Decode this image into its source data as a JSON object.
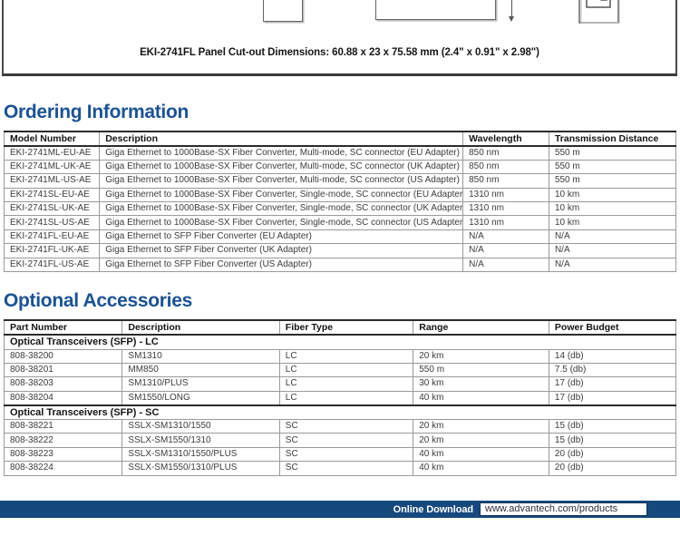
{
  "colors": {
    "heading_blue": "#1A5296",
    "footer_bar_blue": "#16497E",
    "table_border_gray": "#9a9a9a"
  },
  "diagram": {
    "caption": "EKI-2741FL Panel Cut-out Dimensions: 60.88 x 23 x 75.58 mm (2.4\" x 0.91\" x 2.98\")"
  },
  "ordering": {
    "title": "Ordering Information",
    "columns": [
      "Model Number",
      "Description",
      "Wavelength",
      "Transmission Distance"
    ],
    "col_widths": [
      "14.2%",
      "54.1%",
      "12.8%",
      "18.9%"
    ],
    "rows": [
      [
        "EKI-2741ML-EU-AE",
        "Giga Ethernet to 1000Base-SX Fiber Converter, Multi-mode, SC connector (EU Adapter)",
        "850 nm",
        "550 m"
      ],
      [
        "EKI-2741ML-UK-AE",
        "Giga Ethernet to 1000Base-SX Fiber Converter, Multi-mode, SC connector (UK Adapter)",
        "850 nm",
        "550 m"
      ],
      [
        "EKI-2741ML-US-AE",
        "Giga Ethernet to 1000Base-SX Fiber Converter, Multi-mode, SC connector (US Adapter)",
        "850 nm",
        "550 m"
      ],
      [
        "EKI-2741SL-EU-AE",
        "Giga Ethernet to 1000Base-SX Fiber Converter, Single-mode, SC connector (EU Adapter)",
        "1310 nm",
        "10 km"
      ],
      [
        "EKI-2741SL-UK-AE",
        "Giga Ethernet to 1000Base-SX Fiber Converter, Single-mode, SC connector (UK Adapter)",
        "1310 nm",
        "10 km"
      ],
      [
        "EKI-2741SL-US-AE",
        "Giga Ethernet to 1000Base-SX Fiber Converter, Single-mode, SC connector (US Adapter)",
        "1310 nm",
        "10 km"
      ],
      [
        "EKI-2741FL-EU-AE",
        "Giga Ethernet to SFP Fiber Converter (EU Adapter)",
        "N/A",
        "N/A"
      ],
      [
        "EKI-2741FL-UK-AE",
        "Giga Ethernet to SFP Fiber Converter (UK Adapter)",
        "N/A",
        "N/A"
      ],
      [
        "EKI-2741FL-US-AE",
        "Giga Ethernet to SFP Fiber Converter (US Adapter)",
        "N/A",
        "N/A"
      ]
    ]
  },
  "accessories": {
    "title": "Optional Accessories",
    "columns": [
      "Part Number",
      "Description",
      "Fiber Type",
      "Range",
      "Power Budget"
    ],
    "col_widths": [
      "17.6%",
      "23.4%",
      "19.9%",
      "20.2%",
      "18.9%"
    ],
    "groups": [
      {
        "label": "Optical Transceivers (SFP) - LC",
        "rows": [
          [
            "808-38200",
            "SM1310",
            "LC",
            "20 km",
            "14 (db)"
          ],
          [
            "808-38201",
            "MM850",
            "LC",
            "550 m",
            "7.5 (db)"
          ],
          [
            "808-38203",
            "SM1310/PLUS",
            "LC",
            "30 km",
            "17 (db)"
          ],
          [
            "808-38204",
            "SM1550/LONG",
            "LC",
            "40 km",
            "17 (db)"
          ]
        ]
      },
      {
        "label": "Optical Transceivers (SFP) - SC",
        "rows": [
          [
            "808-38221",
            "SSLX-SM1310/1550",
            "SC",
            "20 km",
            "15 (db)"
          ],
          [
            "808-38222",
            "SSLX-SM1550/1310",
            "SC",
            "20 km",
            "15 (db)"
          ],
          [
            "808-38223",
            "SSLX-SM1310/1550/PLUS",
            "SC",
            "40 km",
            "20 (db)"
          ],
          [
            "808-38224",
            "SSLX-SM1550/1310/PLUS",
            "SC",
            "40 km",
            "20 (db)"
          ]
        ]
      }
    ]
  },
  "footer": {
    "label": "Online Download",
    "url": "www.advantech.com/products"
  }
}
